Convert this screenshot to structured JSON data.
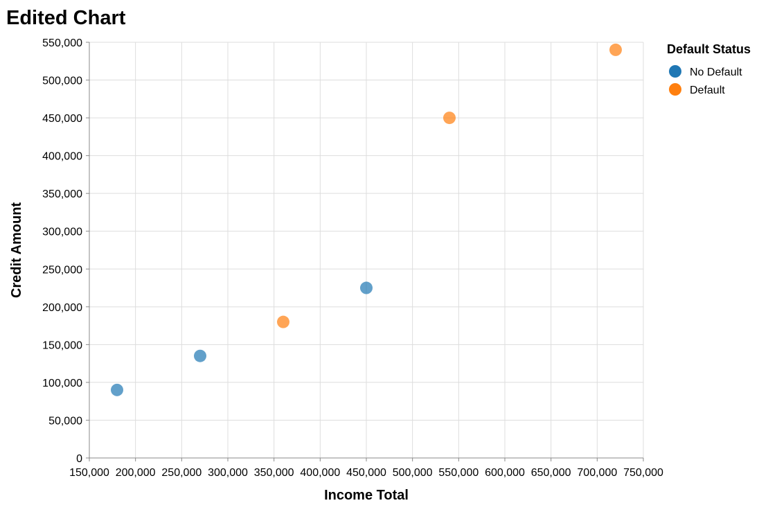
{
  "chart_data": {
    "type": "scatter",
    "title": "Edited Chart",
    "xlabel": "Income Total",
    "ylabel": "Credit Amount",
    "xlim": [
      150000,
      750000
    ],
    "ylim": [
      0,
      550000
    ],
    "x_ticks": [
      "150,000",
      "200,000",
      "250,000",
      "300,000",
      "350,000",
      "400,000",
      "450,000",
      "500,000",
      "550,000",
      "600,000",
      "650,000",
      "700,000",
      "750,000"
    ],
    "x_tick_values": [
      150000,
      200000,
      250000,
      300000,
      350000,
      400000,
      450000,
      500000,
      550000,
      600000,
      650000,
      700000,
      750000
    ],
    "y_ticks": [
      "0",
      "50,000",
      "100,000",
      "150,000",
      "200,000",
      "250,000",
      "300,000",
      "350,000",
      "400,000",
      "450,000",
      "500,000",
      "550,000"
    ],
    "y_tick_values": [
      0,
      50000,
      100000,
      150000,
      200000,
      250000,
      300000,
      350000,
      400000,
      450000,
      500000,
      550000
    ],
    "grid": true,
    "legend": {
      "title": "Default Status",
      "placement": "right",
      "entries": [
        {
          "label": "No Default",
          "color": "#1f77b4"
        },
        {
          "label": "Default",
          "color": "#ff7f0e"
        }
      ]
    },
    "series": [
      {
        "name": "No Default",
        "color": "#1f77b4",
        "points": [
          {
            "x": 180000,
            "y": 90000
          },
          {
            "x": 270000,
            "y": 135000
          },
          {
            "x": 450000,
            "y": 225000
          }
        ]
      },
      {
        "name": "Default",
        "color": "#ff7f0e",
        "points": [
          {
            "x": 360000,
            "y": 180000
          },
          {
            "x": 540000,
            "y": 450000
          },
          {
            "x": 720000,
            "y": 540000
          }
        ]
      }
    ]
  }
}
